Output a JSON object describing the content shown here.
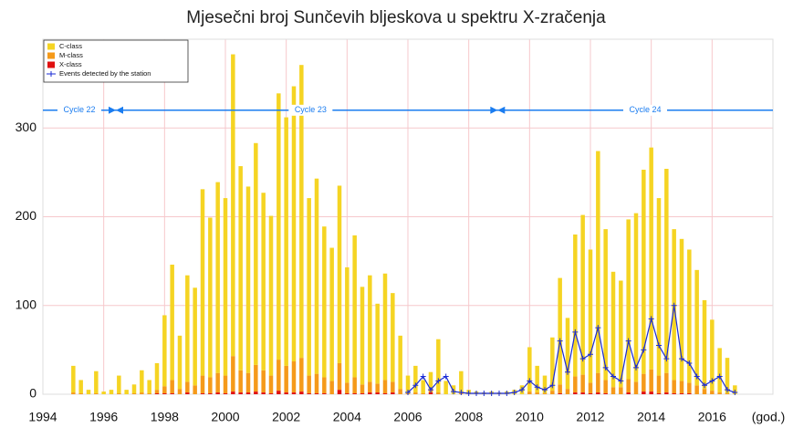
{
  "chart_data": {
    "type": "bar",
    "title": "Mjesečni broj Sunčevih bljeskova u spektru X-zračenja",
    "xlabel": "(god.)",
    "xlim": [
      1994,
      2018
    ],
    "xticks": [
      1994,
      1996,
      1998,
      2000,
      2002,
      2004,
      2006,
      2008,
      2010,
      2012,
      2014,
      2016
    ],
    "ylim": [
      0,
      400
    ],
    "yticks": [
      0,
      100,
      200,
      300
    ],
    "grid": true,
    "legend": "upper left",
    "x": [
      1995,
      1995.25,
      1995.5,
      1995.75,
      1996,
      1996.25,
      1996.5,
      1996.75,
      1997,
      1997.25,
      1997.5,
      1997.75,
      1998,
      1998.25,
      1998.5,
      1998.75,
      1999,
      1999.25,
      1999.5,
      1999.75,
      2000,
      2000.25,
      2000.5,
      2000.75,
      2001,
      2001.25,
      2001.5,
      2001.75,
      2002,
      2002.25,
      2002.5,
      2002.75,
      2003,
      2003.25,
      2003.5,
      2003.75,
      2004,
      2004.25,
      2004.5,
      2004.75,
      2005,
      2005.25,
      2005.5,
      2005.75,
      2006,
      2006.25,
      2006.5,
      2006.75,
      2007,
      2007.25,
      2007.5,
      2007.75,
      2008,
      2008.25,
      2008.5,
      2008.75,
      2009,
      2009.25,
      2009.5,
      2009.75,
      2010,
      2010.25,
      2010.5,
      2010.75,
      2011,
      2011.25,
      2011.5,
      2011.75,
      2012,
      2012.25,
      2012.5,
      2012.75,
      2013,
      2013.25,
      2013.5,
      2013.75,
      2014,
      2014.25,
      2014.5,
      2014.75,
      2015,
      2015.25,
      2015.5,
      2015.75,
      2016,
      2016.25,
      2016.5,
      2016.75
    ],
    "series": [
      {
        "name": "X-class",
        "color": "#e01010",
        "values": [
          0,
          0,
          0,
          0,
          0,
          0,
          0,
          0,
          0,
          0,
          0,
          1,
          1,
          1,
          0,
          2,
          0,
          1,
          1,
          2,
          1,
          3,
          2,
          2,
          3,
          2,
          1,
          4,
          2,
          2,
          3,
          1,
          1,
          1,
          0,
          5,
          1,
          1,
          1,
          2,
          2,
          1,
          2,
          0,
          0,
          0,
          0,
          2,
          0,
          0,
          0,
          0,
          0,
          0,
          0,
          0,
          0,
          0,
          0,
          0,
          0,
          0,
          0,
          0,
          1,
          0,
          2,
          2,
          1,
          2,
          1,
          0,
          0,
          2,
          0,
          3,
          3,
          1,
          2,
          1,
          1,
          1,
          0,
          0,
          0,
          0,
          0,
          0
        ]
      },
      {
        "name": "M-class",
        "color": "#f59a1a",
        "values": [
          2,
          1,
          0,
          1,
          0,
          0,
          1,
          0,
          1,
          2,
          1,
          4,
          8,
          15,
          6,
          12,
          10,
          20,
          18,
          22,
          20,
          40,
          25,
          22,
          30,
          25,
          20,
          35,
          30,
          35,
          38,
          20,
          22,
          18,
          15,
          30,
          12,
          18,
          10,
          12,
          10,
          15,
          12,
          6,
          1,
          2,
          1,
          3,
          2,
          0,
          0,
          1,
          0,
          0,
          0,
          0,
          0,
          0,
          0,
          0,
          3,
          2,
          1,
          4,
          10,
          6,
          18,
          20,
          12,
          22,
          15,
          8,
          8,
          15,
          14,
          20,
          25,
          20,
          22,
          15,
          14,
          12,
          10,
          6,
          4,
          2,
          1,
          0
        ]
      },
      {
        "name": "C-class",
        "color": "#f5d423",
        "values": [
          30,
          15,
          5,
          25,
          3,
          5,
          20,
          5,
          10,
          25,
          15,
          30,
          80,
          130,
          60,
          120,
          110,
          210,
          180,
          215,
          200,
          340,
          230,
          210,
          250,
          200,
          180,
          300,
          280,
          310,
          330,
          200,
          220,
          170,
          150,
          200,
          130,
          160,
          110,
          120,
          90,
          120,
          100,
          60,
          20,
          30,
          15,
          20,
          60,
          15,
          10,
          25,
          5,
          3,
          2,
          3,
          2,
          3,
          5,
          10,
          50,
          30,
          20,
          60,
          120,
          80,
          160,
          180,
          150,
          250,
          170,
          130,
          120,
          180,
          190,
          230,
          250,
          200,
          230,
          170,
          160,
          150,
          130,
          100,
          80,
          50,
          40,
          10
        ]
      },
      {
        "name": "Events detected by the station",
        "color": "#1a2bd6",
        "type": "line",
        "values": [
          null,
          null,
          null,
          null,
          null,
          null,
          null,
          null,
          null,
          null,
          null,
          null,
          null,
          null,
          null,
          null,
          null,
          null,
          null,
          null,
          null,
          null,
          null,
          null,
          null,
          null,
          null,
          null,
          null,
          null,
          null,
          null,
          null,
          null,
          null,
          null,
          null,
          null,
          null,
          null,
          null,
          null,
          null,
          null,
          2,
          10,
          20,
          5,
          15,
          20,
          3,
          2,
          1,
          1,
          1,
          1,
          1,
          1,
          2,
          5,
          15,
          8,
          5,
          10,
          60,
          25,
          70,
          40,
          45,
          75,
          30,
          20,
          15,
          60,
          30,
          50,
          85,
          55,
          40,
          100,
          40,
          35,
          20,
          10,
          15,
          20,
          5,
          2
        ]
      }
    ],
    "cycles": {
      "y": 320,
      "color": "#1a7cf0",
      "boundaries": [
        1996.4,
        2008.95
      ],
      "labels": [
        "Cycle 22",
        "Cycle 23",
        "Cycle 24"
      ],
      "label_x": [
        1995.2,
        2002.8,
        2013.8
      ]
    }
  }
}
